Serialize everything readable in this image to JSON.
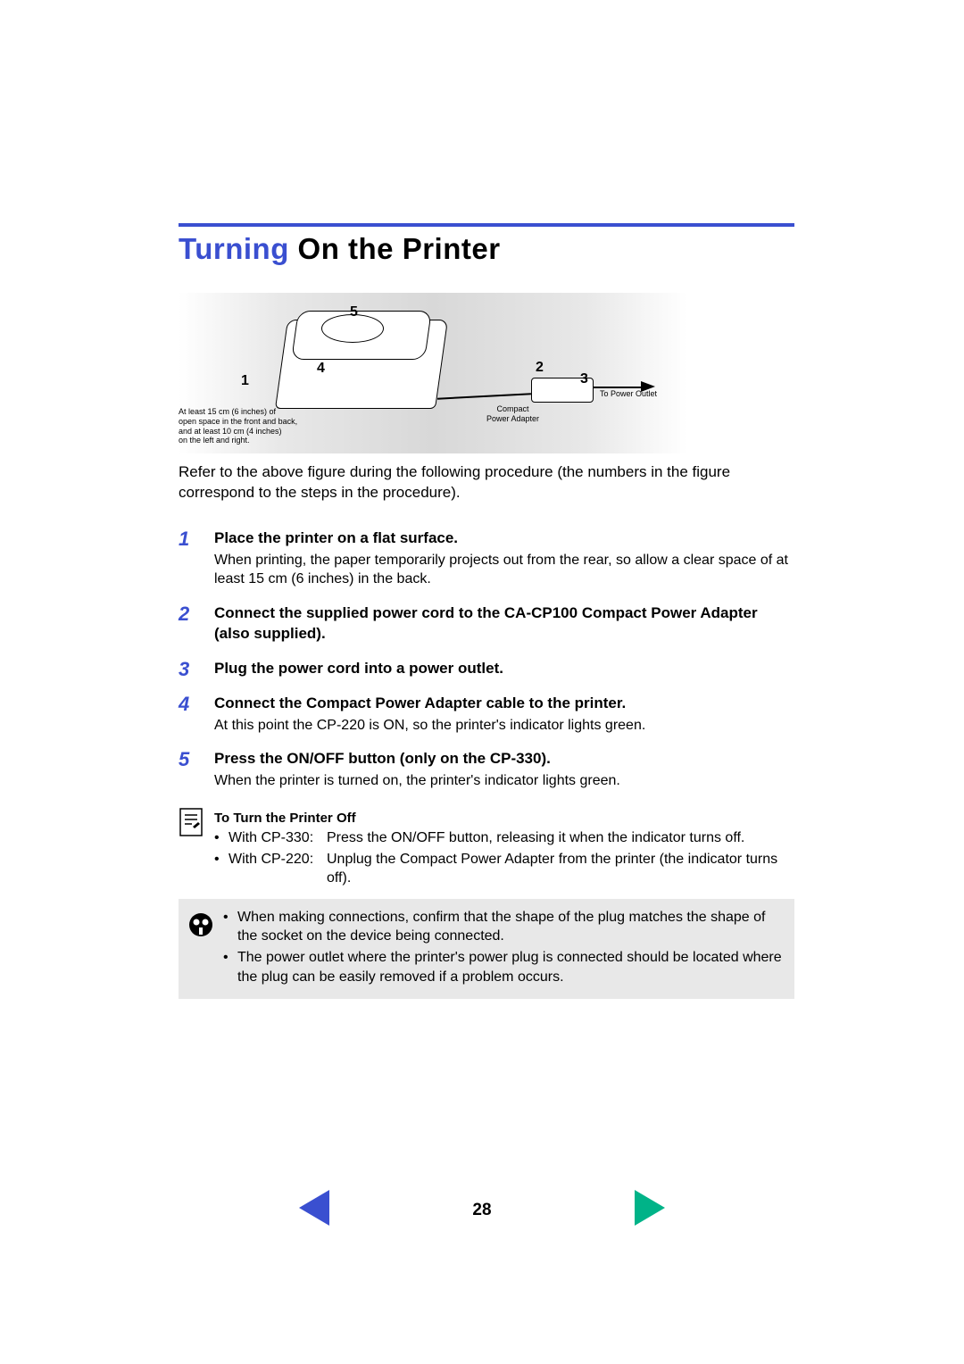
{
  "title": {
    "accent": "Turning",
    "rest": " On the Printer"
  },
  "figure": {
    "labels": {
      "l1": "1",
      "l2": "2",
      "l3": "3",
      "l4": "4",
      "l5": "5"
    },
    "caption_left": "At least 15 cm (6 inches) of\nopen space in the front and back,\nand at least 10 cm (4 inches)\non the left and right.",
    "caption_adapter": "Compact\nPower Adapter",
    "caption_outlet": "To Power Outlet"
  },
  "intro": "Refer to the above figure during the following procedure (the numbers in the figure correspond to the steps in the procedure).",
  "steps": [
    {
      "num": "1",
      "head": "Place the printer on a flat surface.",
      "text": "When printing, the paper temporarily projects out from the rear, so allow a clear space of at least 15 cm (6 inches) in the back."
    },
    {
      "num": "2",
      "head": "Connect the supplied power cord to the CA-CP100 Compact Power Adapter (also supplied)."
    },
    {
      "num": "3",
      "head": "Plug the power cord into a power outlet."
    },
    {
      "num": "4",
      "head": "Connect the Compact Power Adapter cable to the printer.",
      "text": "At this point the CP-220 is ON, so the printer's indicator lights green."
    },
    {
      "num": "5",
      "head": "Press the ON/OFF button (only on the CP-330).",
      "text": "When the printer is turned on, the printer's indicator lights green."
    }
  ],
  "turn_off": {
    "title": "To Turn the Printer Off",
    "items": [
      {
        "prefix": "With CP-330:",
        "text": "Press the ON/OFF button, releasing it when the indicator turns off."
      },
      {
        "prefix": "With CP-220:",
        "text": "Unplug the Compact Power Adapter from the printer (the indicator turns off)."
      }
    ]
  },
  "callout": {
    "items": [
      "When making connections, confirm that the shape of the plug matches the shape of the socket on the device being connected.",
      "The power outlet where the printer's power plug is connected should be located where the plug can be easily removed if a problem occurs."
    ]
  },
  "footer": {
    "page": "28"
  },
  "colors": {
    "accent": "#3a4fd0",
    "callout_bg": "#e8e8e8",
    "arrow_prev": "#3a4fd0",
    "arrow_next": "#00b388"
  }
}
